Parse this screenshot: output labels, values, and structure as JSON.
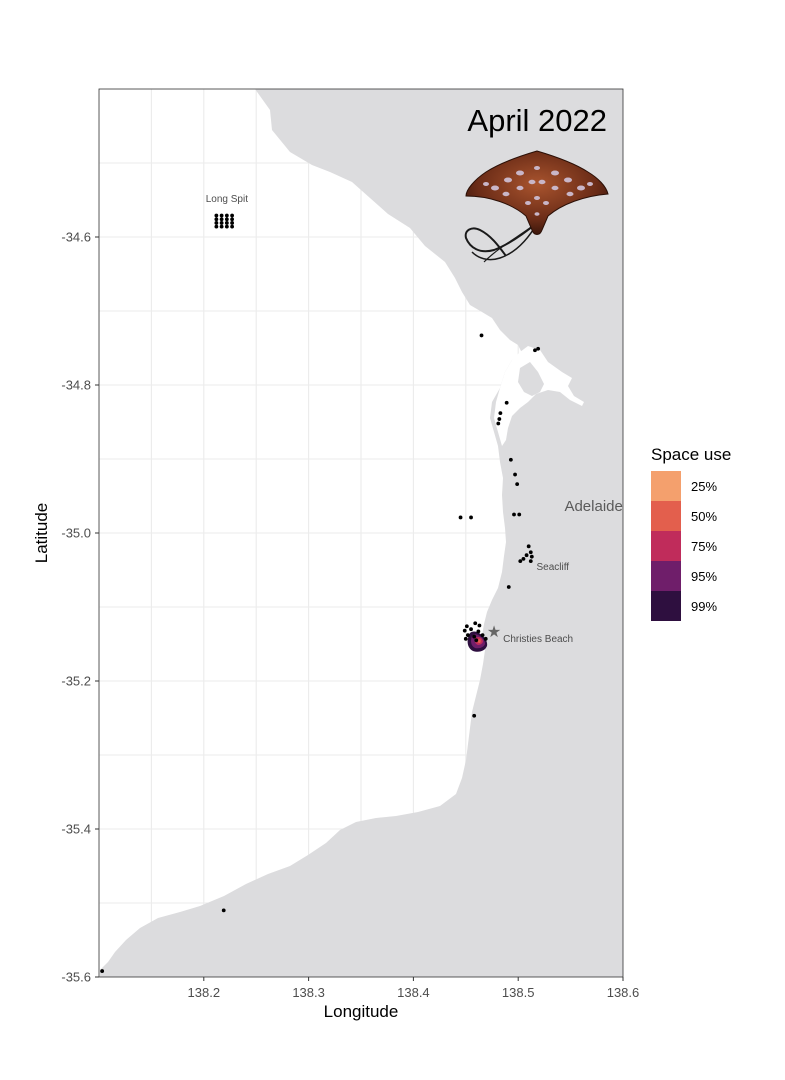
{
  "map": {
    "title": "April 2022",
    "xlabel": "Longitude",
    "ylabel": "Latitude",
    "xlim": [
      138.1,
      138.6
    ],
    "ylim": [
      -35.6,
      -34.4
    ],
    "x_ticks": [
      138.2,
      138.3,
      138.4,
      138.5,
      138.6
    ],
    "x_tick_labels": [
      "138.2",
      "138.3",
      "138.4",
      "138.5",
      "138.6"
    ],
    "y_ticks": [
      -34.6,
      -34.8,
      -35.0,
      -35.2,
      -35.4,
      -35.6
    ],
    "y_tick_labels": [
      "-34.6",
      "-34.8",
      "-35.0",
      "-35.2",
      "-35.4",
      "-35.6"
    ],
    "grid": true,
    "colors": {
      "land": "#dcdcde",
      "sea": "#ffffff",
      "grid": "#ebebeb",
      "point": "#000000",
      "star": "#666666"
    }
  },
  "places": [
    {
      "name": "Long Spit",
      "lon": 138.222,
      "lat": -34.553,
      "size": "small"
    },
    {
      "name": "Adelaide",
      "lon": 138.572,
      "lat": -34.97,
      "size": "large"
    },
    {
      "name": "Seacliff",
      "lon": 138.533,
      "lat": -35.05,
      "size": "small"
    },
    {
      "name": "Christies Beach",
      "lon": 138.519,
      "lat": -35.147,
      "size": "small"
    }
  ],
  "receivers": [
    [
      138.212,
      -34.571
    ],
    [
      138.212,
      -34.576
    ],
    [
      138.212,
      -34.581
    ],
    [
      138.212,
      -34.586
    ],
    [
      138.217,
      -34.571
    ],
    [
      138.217,
      -34.576
    ],
    [
      138.217,
      -34.581
    ],
    [
      138.217,
      -34.586
    ],
    [
      138.222,
      -34.571
    ],
    [
      138.222,
      -34.576
    ],
    [
      138.222,
      -34.581
    ],
    [
      138.222,
      -34.586
    ],
    [
      138.227,
      -34.571
    ],
    [
      138.227,
      -34.576
    ],
    [
      138.227,
      -34.581
    ],
    [
      138.227,
      -34.586
    ],
    [
      138.465,
      -34.733
    ],
    [
      138.516,
      -34.753
    ],
    [
      138.519,
      -34.751
    ],
    [
      138.489,
      -34.824
    ],
    [
      138.483,
      -34.838
    ],
    [
      138.482,
      -34.846
    ],
    [
      138.481,
      -34.852
    ],
    [
      138.493,
      -34.901
    ],
    [
      138.497,
      -34.921
    ],
    [
      138.499,
      -34.934
    ],
    [
      138.496,
      -34.975
    ],
    [
      138.501,
      -34.975
    ],
    [
      138.445,
      -34.979
    ],
    [
      138.455,
      -34.979
    ],
    [
      138.51,
      -35.018
    ],
    [
      138.512,
      -35.026
    ],
    [
      138.508,
      -35.03
    ],
    [
      138.513,
      -35.032
    ],
    [
      138.505,
      -35.035
    ],
    [
      138.512,
      -35.038
    ],
    [
      138.502,
      -35.038
    ],
    [
      138.491,
      -35.073
    ],
    [
      138.451,
      -35.126
    ],
    [
      138.459,
      -35.122
    ],
    [
      138.463,
      -35.125
    ],
    [
      138.449,
      -35.132
    ],
    [
      138.455,
      -35.13
    ],
    [
      138.462,
      -35.133
    ],
    [
      138.452,
      -35.138
    ],
    [
      138.458,
      -35.14
    ],
    [
      138.466,
      -35.138
    ],
    [
      138.46,
      -35.145
    ],
    [
      138.469,
      -35.143
    ],
    [
      138.45,
      -35.143
    ],
    [
      138.458,
      -35.247
    ],
    [
      138.219,
      -35.51
    ],
    [
      138.103,
      -35.592
    ]
  ],
  "release_site": {
    "lon": 138.477,
    "lat": -35.133,
    "marker": "star"
  },
  "legend": {
    "title": "Space use",
    "items": [
      {
        "label": "25%",
        "color": "#f4a06d"
      },
      {
        "label": "50%",
        "color": "#e35f4d"
      },
      {
        "label": "75%",
        "color": "#c02c5b"
      },
      {
        "label": "95%",
        "color": "#6f1e6a"
      },
      {
        "label": "99%",
        "color": "#2e0f3f"
      }
    ]
  },
  "illustration": {
    "subject": "eagle-ray-icon"
  }
}
